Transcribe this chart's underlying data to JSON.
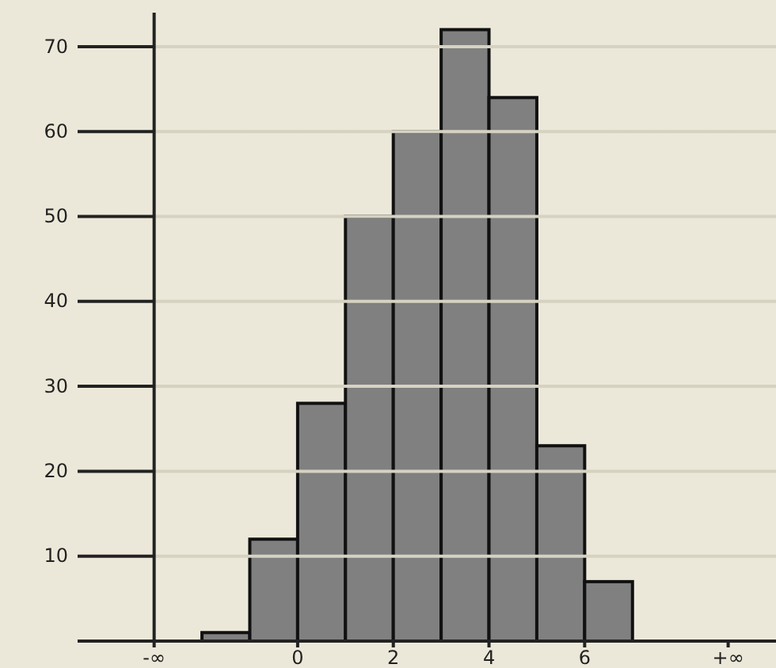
{
  "chart_data": {
    "type": "histogram",
    "bins": [
      -2,
      -1,
      0,
      1,
      2,
      3,
      4,
      5,
      6,
      7
    ],
    "values": [
      1,
      12,
      28,
      50,
      60,
      72,
      64,
      23,
      7
    ],
    "color": "#808080",
    "xlim": [
      -4.6,
      10
    ],
    "xticks": [
      {
        "value": -3,
        "label": "-∞"
      },
      0,
      2,
      4,
      6,
      {
        "value": 9,
        "label": "+∞"
      }
    ],
    "ylim": [
      0,
      74
    ],
    "yticks": [
      10,
      20,
      30,
      40,
      50,
      60,
      70
    ],
    "grid": "y",
    "ref_lines": [
      {
        "axis": "x",
        "value": -3,
        "color": "#222222"
      }
    ]
  }
}
